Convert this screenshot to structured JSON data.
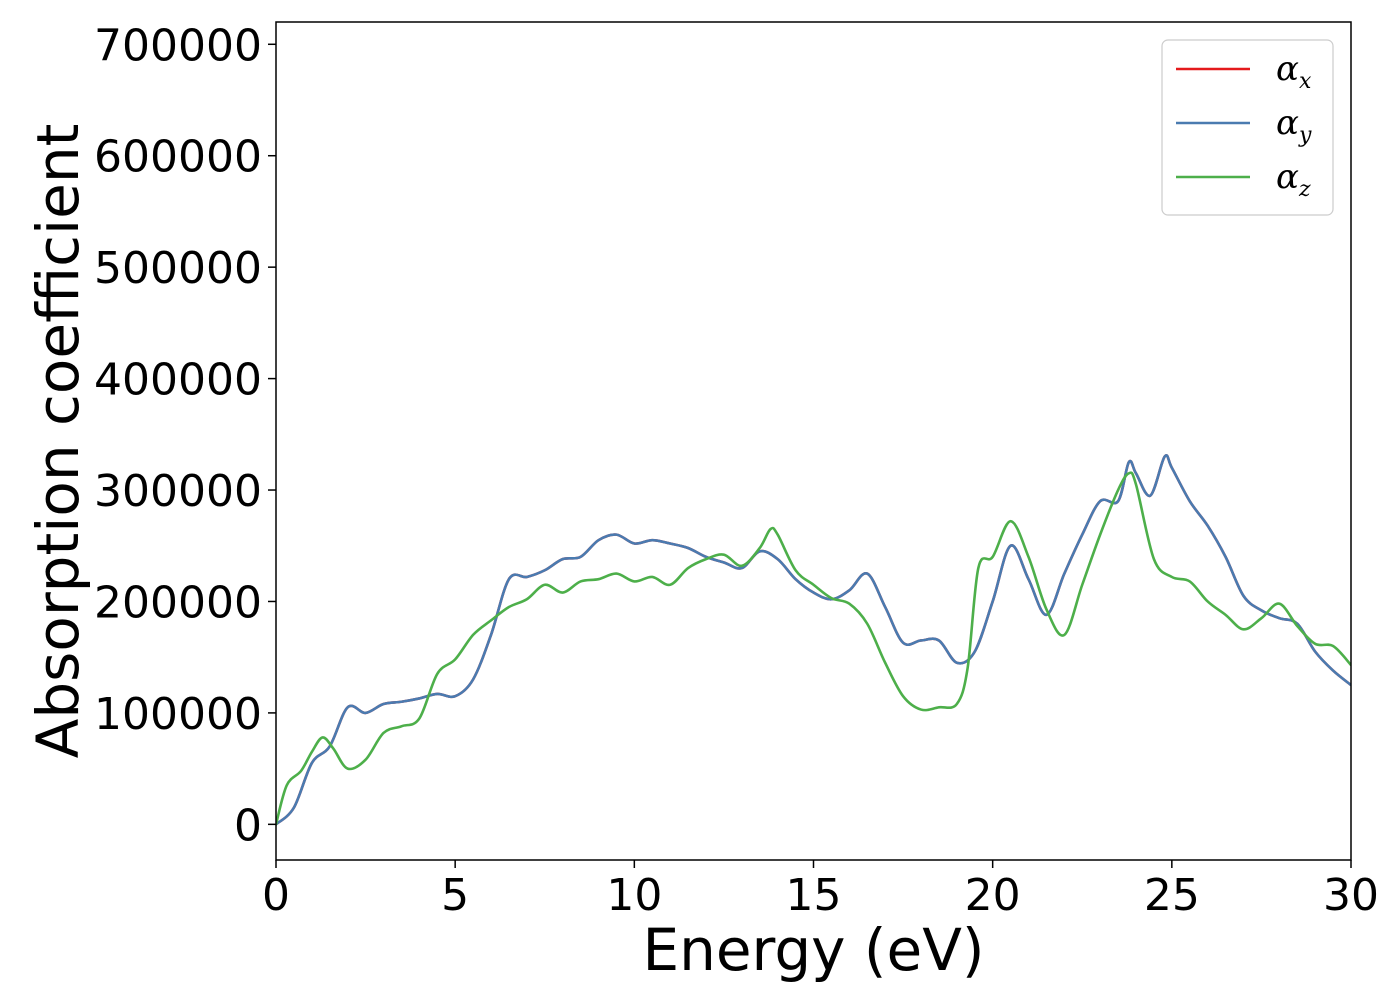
{
  "chart_data": {
    "type": "line",
    "title": "",
    "xlabel": "Energy (eV)",
    "ylabel": "Absorption coefficient",
    "xlim": [
      0,
      30
    ],
    "ylim": [
      -32000,
      720000
    ],
    "x_ticks": [
      0,
      5,
      10,
      15,
      20,
      25,
      30
    ],
    "y_ticks": [
      0,
      100000,
      200000,
      300000,
      400000,
      500000,
      600000,
      700000
    ],
    "grid": false,
    "legend_position": "top-right",
    "series": [
      {
        "name": "α_x",
        "label_base": "α",
        "label_sub": "x",
        "color": "#e41a1c",
        "x": [
          0,
          0.5,
          1.0,
          1.5,
          2.0,
          2.5,
          3.0,
          3.5,
          4.0,
          4.5,
          5.0,
          5.5,
          6.0,
          6.5,
          7.0,
          7.5,
          8.0,
          8.5,
          9.0,
          9.5,
          10.0,
          10.5,
          11.0,
          11.5,
          12.0,
          12.5,
          13.0,
          13.5,
          14.0,
          14.5,
          15.0,
          15.5,
          16.0,
          16.5,
          17.0,
          17.5,
          18.0,
          18.5,
          19.0,
          19.5,
          20.0,
          20.5,
          21.0,
          21.5,
          22.0,
          22.5,
          23.0,
          23.5,
          23.8,
          24.0,
          24.4,
          24.8,
          25.0,
          25.5,
          26.0,
          26.5,
          27.0,
          27.5,
          28.0,
          28.5,
          29.0,
          29.5,
          30.0
        ],
        "y": [
          0,
          15000,
          55000,
          70000,
          105000,
          100000,
          108000,
          110000,
          113000,
          117000,
          115000,
          130000,
          170000,
          220000,
          222000,
          228000,
          238000,
          240000,
          255000,
          260000,
          252000,
          255000,
          252000,
          248000,
          240000,
          235000,
          230000,
          245000,
          238000,
          220000,
          208000,
          202000,
          210000,
          225000,
          195000,
          163000,
          165000,
          165000,
          145000,
          155000,
          200000,
          250000,
          220000,
          188000,
          225000,
          260000,
          290000,
          290000,
          325000,
          315000,
          295000,
          330000,
          320000,
          290000,
          268000,
          240000,
          205000,
          192000,
          185000,
          180000,
          155000,
          138000,
          125000
        ]
      },
      {
        "name": "α_y",
        "label_base": "α",
        "label_sub": "y",
        "color": "#4a7bb0",
        "x": [
          0,
          0.5,
          1.0,
          1.5,
          2.0,
          2.5,
          3.0,
          3.5,
          4.0,
          4.5,
          5.0,
          5.5,
          6.0,
          6.5,
          7.0,
          7.5,
          8.0,
          8.5,
          9.0,
          9.5,
          10.0,
          10.5,
          11.0,
          11.5,
          12.0,
          12.5,
          13.0,
          13.5,
          14.0,
          14.5,
          15.0,
          15.5,
          16.0,
          16.5,
          17.0,
          17.5,
          18.0,
          18.5,
          19.0,
          19.5,
          20.0,
          20.5,
          21.0,
          21.5,
          22.0,
          22.5,
          23.0,
          23.5,
          23.8,
          24.0,
          24.4,
          24.8,
          25.0,
          25.5,
          26.0,
          26.5,
          27.0,
          27.5,
          28.0,
          28.5,
          29.0,
          29.5,
          30.0
        ],
        "y": [
          0,
          15000,
          55000,
          70000,
          105000,
          100000,
          108000,
          110000,
          113000,
          117000,
          115000,
          130000,
          170000,
          220000,
          222000,
          228000,
          238000,
          240000,
          255000,
          260000,
          252000,
          255000,
          252000,
          248000,
          240000,
          235000,
          230000,
          245000,
          238000,
          220000,
          208000,
          202000,
          210000,
          225000,
          195000,
          163000,
          165000,
          165000,
          145000,
          155000,
          200000,
          250000,
          220000,
          188000,
          225000,
          260000,
          290000,
          290000,
          325000,
          315000,
          295000,
          330000,
          320000,
          290000,
          268000,
          240000,
          205000,
          192000,
          185000,
          180000,
          155000,
          138000,
          125000
        ]
      },
      {
        "name": "α_z",
        "label_base": "α",
        "label_sub": "z",
        "color": "#4daf4a",
        "x": [
          0,
          0.3,
          0.7,
          1.0,
          1.3,
          1.6,
          2.0,
          2.5,
          3.0,
          3.5,
          4.0,
          4.5,
          5.0,
          5.5,
          6.0,
          6.5,
          7.0,
          7.5,
          8.0,
          8.5,
          9.0,
          9.5,
          10.0,
          10.5,
          11.0,
          11.5,
          12.0,
          12.5,
          13.0,
          13.5,
          13.8,
          14.0,
          14.5,
          15.0,
          15.5,
          16.0,
          16.5,
          17.0,
          17.5,
          18.0,
          18.5,
          19.0,
          19.3,
          19.6,
          20.0,
          20.5,
          21.0,
          21.5,
          22.0,
          22.5,
          23.0,
          23.5,
          23.8,
          24.0,
          24.5,
          25.0,
          25.5,
          26.0,
          26.5,
          27.0,
          27.5,
          28.0,
          28.5,
          29.0,
          29.5,
          30.0
        ],
        "y": [
          0,
          35000,
          48000,
          65000,
          78000,
          68000,
          50000,
          58000,
          82000,
          88000,
          95000,
          135000,
          148000,
          170000,
          183000,
          195000,
          202000,
          215000,
          208000,
          218000,
          220000,
          225000,
          218000,
          222000,
          215000,
          230000,
          238000,
          242000,
          232000,
          248000,
          265000,
          260000,
          228000,
          215000,
          203000,
          198000,
          180000,
          145000,
          115000,
          103000,
          105000,
          108000,
          140000,
          230000,
          240000,
          272000,
          240000,
          193000,
          170000,
          215000,
          260000,
          300000,
          315000,
          305000,
          238000,
          222000,
          218000,
          200000,
          188000,
          175000,
          185000,
          198000,
          178000,
          162000,
          160000,
          143000
        ]
      }
    ]
  }
}
